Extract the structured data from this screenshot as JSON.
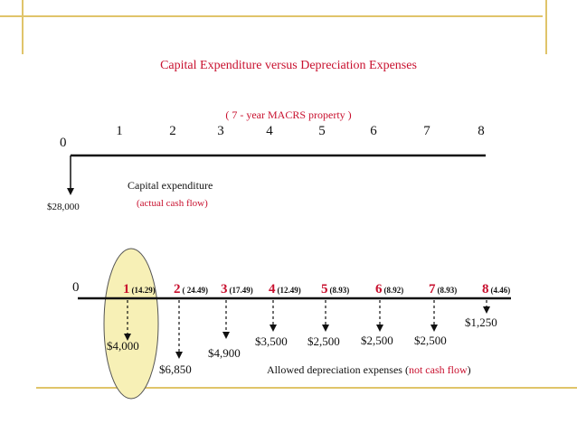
{
  "title": "Capital  Expenditure  versus  Depreciation  Expenses",
  "subtitle": "( 7 - year  MACRS property )",
  "timeline1": {
    "zero_label": "0",
    "ticks": [
      "1",
      "2",
      "3",
      "4",
      "5",
      "6",
      "7",
      "8"
    ],
    "outflow": "$28,000",
    "cap_label": "Capital expenditure",
    "cap_sub": "(actual cash flow)"
  },
  "timeline2": {
    "zero_label": "0",
    "years": [
      {
        "year": "1",
        "pct": "(14.29)",
        "amount": "$4,000"
      },
      {
        "year": "2",
        "pct": "( 24.49)",
        "amount": "$6,850"
      },
      {
        "year": "3",
        "pct": "(17.49)",
        "amount": "$4,900"
      },
      {
        "year": "4",
        "pct": "(12.49)",
        "amount": "$3,500"
      },
      {
        "year": "5",
        "pct": "(8.93)",
        "amount": "$2,500"
      },
      {
        "year": "6",
        "pct": "(8.92)",
        "amount": "$2,500"
      },
      {
        "year": "7",
        "pct": "(8.93)",
        "amount": "$2,500"
      },
      {
        "year": "8",
        "pct": "(4.46)",
        "amount": "$1,250"
      }
    ],
    "note_prefix": "Allowed depreciation expenses (",
    "note_highlight": "not cash flow",
    "note_suffix": ")"
  },
  "colors": {
    "accent_red": "#c8102e",
    "frame_gold": "#e0c46a",
    "highlight_fill": "#f7f0b6",
    "highlight_stroke": "#555555"
  }
}
